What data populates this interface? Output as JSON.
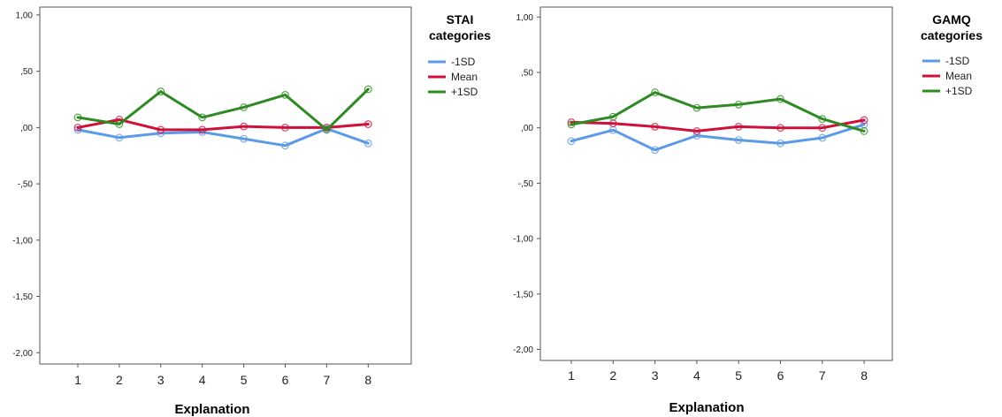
{
  "chart_data": [
    {
      "type": "line",
      "title": "",
      "xlabel": "Explanation",
      "ylabel": "",
      "categories": [
        "1",
        "2",
        "3",
        "4",
        "5",
        "6",
        "7",
        "8"
      ],
      "ylim": [
        -2.1,
        1.07
      ],
      "yticks": [
        1.0,
        0.5,
        0.0,
        -0.5,
        -1.0,
        -1.5,
        -2.0
      ],
      "ytick_labels": [
        "1,00",
        ",50",
        ",00",
        "-,50",
        "-1,00",
        "-1,50",
        "-2,00"
      ],
      "grid": false,
      "legend": {
        "title_lines": [
          "STAI",
          "categories"
        ],
        "placement": "right"
      },
      "series": [
        {
          "name": "-1SD",
          "color": "#5b9ae6",
          "values": [
            -0.02,
            -0.09,
            -0.05,
            -0.04,
            -0.1,
            -0.16,
            -0.01,
            -0.14
          ]
        },
        {
          "name": "Mean",
          "color": "#d0103a",
          "values": [
            0.0,
            0.07,
            -0.02,
            -0.02,
            0.01,
            0.0,
            0.0,
            0.03
          ]
        },
        {
          "name": "+1SD",
          "color": "#2f8a23",
          "values": [
            0.09,
            0.03,
            0.32,
            0.09,
            0.18,
            0.29,
            -0.02,
            0.34
          ]
        }
      ]
    },
    {
      "type": "line",
      "title": "",
      "xlabel": "Explanation",
      "ylabel": "",
      "categories": [
        "1",
        "2",
        "3",
        "4",
        "5",
        "6",
        "7",
        "8"
      ],
      "ylim": [
        -2.1,
        1.09
      ],
      "yticks": [
        1.0,
        0.5,
        0.0,
        -0.5,
        -1.0,
        -1.5,
        -2.0
      ],
      "ytick_labels": [
        "1,00",
        ",50",
        ",00",
        "-,50",
        "-1,00",
        "-1,50",
        "-2,00"
      ],
      "grid": false,
      "legend": {
        "title_lines": [
          "GAMQ",
          "categories"
        ],
        "placement": "right"
      },
      "series": [
        {
          "name": "-1SD",
          "color": "#5b9ae6",
          "values": [
            -0.12,
            -0.02,
            -0.2,
            -0.07,
            -0.11,
            -0.14,
            -0.09,
            0.03
          ]
        },
        {
          "name": "Mean",
          "color": "#d0103a",
          "values": [
            0.05,
            0.04,
            0.01,
            -0.03,
            0.01,
            0.0,
            0.0,
            0.07
          ]
        },
        {
          "name": "+1SD",
          "color": "#2f8a23",
          "values": [
            0.03,
            0.1,
            0.32,
            0.18,
            0.21,
            0.26,
            0.08,
            -0.03
          ]
        }
      ]
    }
  ]
}
